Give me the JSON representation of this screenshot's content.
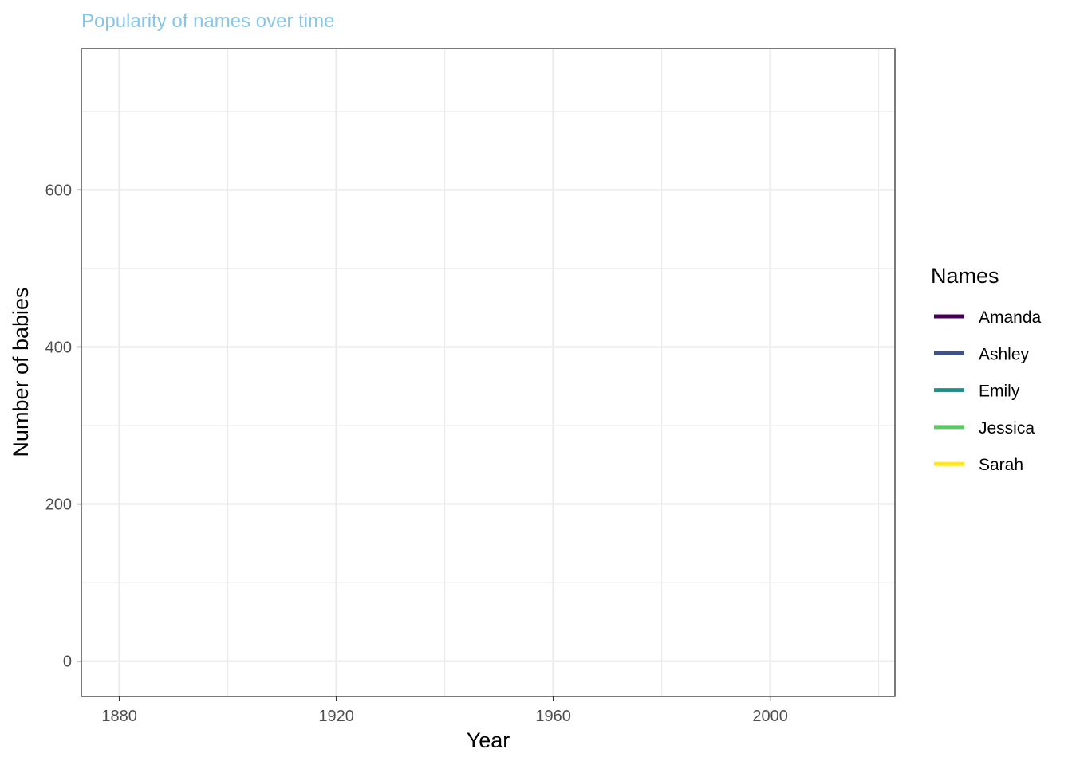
{
  "chart_data": {
    "type": "line",
    "title": "Popularity of names over time",
    "xlabel": "Year",
    "ylabel": "Number of babies",
    "xlim": [
      1873,
      2023
    ],
    "ylim": [
      -45,
      780
    ],
    "x_ticks": [
      1880,
      1920,
      1960,
      2000
    ],
    "x_tick_labels": [
      "1880",
      "1920",
      "1960",
      "2000"
    ],
    "x_minor_ticks": [
      1900,
      1940,
      1980,
      2020
    ],
    "y_ticks": [
      0,
      200,
      400,
      600
    ],
    "y_tick_labels": [
      "0",
      "200",
      "400",
      "600"
    ],
    "y_minor_ticks": [
      100,
      300,
      500,
      700
    ],
    "grid": true,
    "legend": {
      "title": "Names",
      "placement": "right",
      "entries": [
        "Amanda",
        "Ashley",
        "Emily",
        "Jessica",
        "Sarah"
      ]
    },
    "series": [
      {
        "name": "Amanda",
        "color": "#440154",
        "x": [],
        "y": []
      },
      {
        "name": "Ashley",
        "color": "#3b528b",
        "x": [],
        "y": []
      },
      {
        "name": "Emily",
        "color": "#21908c",
        "x": [],
        "y": []
      },
      {
        "name": "Jessica",
        "color": "#5dc863",
        "x": [],
        "y": []
      },
      {
        "name": "Sarah",
        "color": "#fde725",
        "x": [],
        "y": []
      }
    ]
  }
}
